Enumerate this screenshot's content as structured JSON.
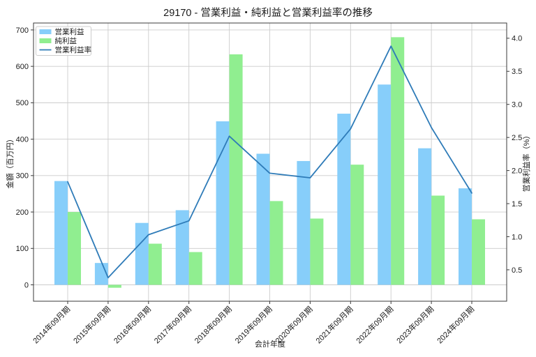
{
  "title": "29170 - 営業利益・純利益と営業利益率の推移",
  "chart_data": {
    "type": "bar+line combo",
    "categories": [
      "2014年09月期",
      "2015年09月期",
      "2016年09月期",
      "2017年09月期",
      "2018年09月期",
      "2019年09月期",
      "2020年09月期",
      "2021年09月期",
      "2022年09月期",
      "2023年09月期",
      "2024年09月期"
    ],
    "series": [
      {
        "name": "営業利益",
        "type": "bar",
        "axis": "left",
        "color": "#87CEFA",
        "values": [
          285,
          60,
          170,
          205,
          449,
          360,
          340,
          470,
          550,
          375,
          265
        ]
      },
      {
        "name": "純利益",
        "type": "bar",
        "axis": "left",
        "color": "#90EE90",
        "values": [
          200,
          -8,
          113,
          90,
          633,
          230,
          182,
          330,
          680,
          245,
          180
        ]
      },
      {
        "name": "営業利益率",
        "type": "line",
        "axis": "right",
        "color": "#2E7BB8",
        "values": [
          1.83,
          0.38,
          1.03,
          1.24,
          2.52,
          1.96,
          1.89,
          2.63,
          3.88,
          2.65,
          1.66
        ]
      }
    ],
    "xlabel": "会計年度",
    "ylabel_left": "金額（百万円）",
    "ylabel_right": "営業利益率（%）",
    "ylim_left": [
      -45,
      719
    ],
    "ylim_right": [
      0.025,
      4.23
    ],
    "yticks_left": [
      0,
      100,
      200,
      300,
      400,
      500,
      600,
      700
    ],
    "yticks_right": [
      0.5,
      1.0,
      1.5,
      2.0,
      2.5,
      3.0,
      3.5,
      4.0
    ],
    "grid": true,
    "legend": {
      "position": "upper-left",
      "entries": [
        "営業利益",
        "純利益",
        "営業利益率"
      ]
    }
  },
  "colors": {
    "grid": "#cccccc",
    "spine": "#3a3a3a",
    "background": "#ffffff"
  }
}
